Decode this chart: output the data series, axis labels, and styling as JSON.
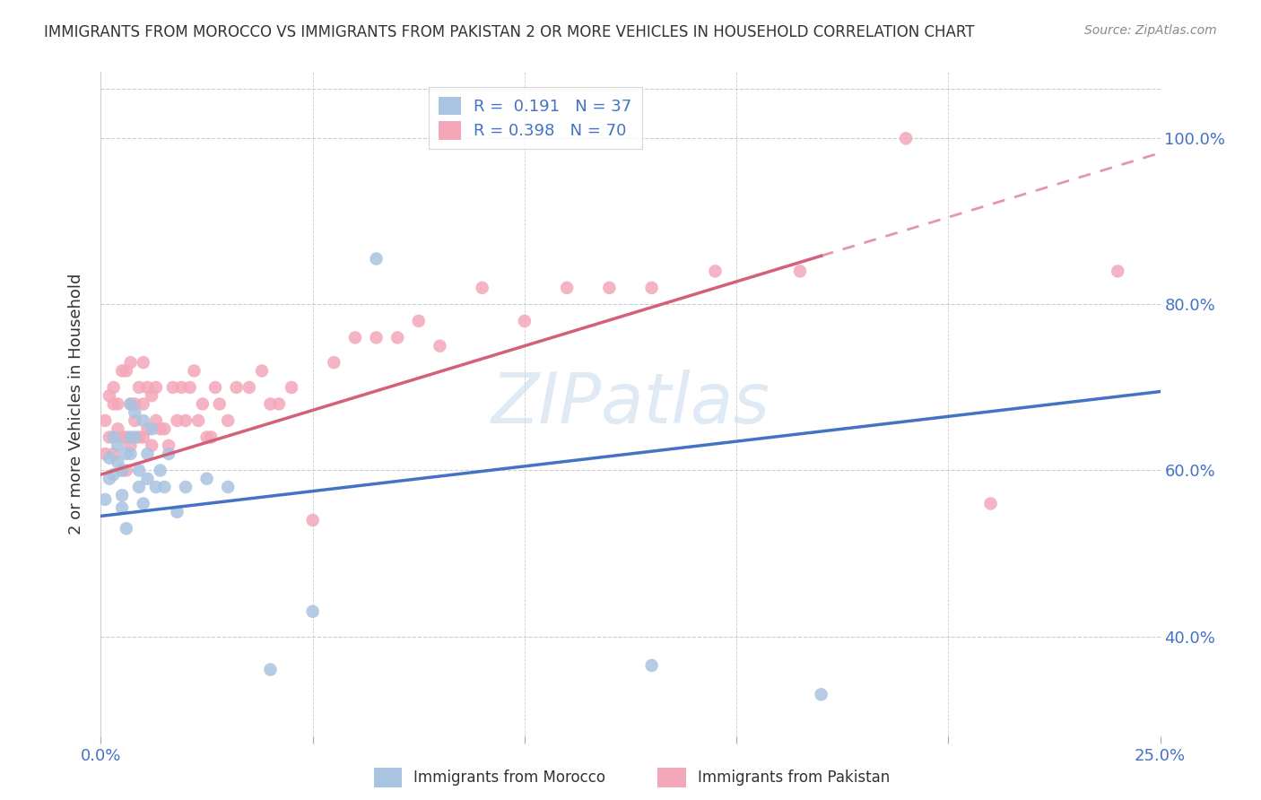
{
  "title": "IMMIGRANTS FROM MOROCCO VS IMMIGRANTS FROM PAKISTAN 2 OR MORE VEHICLES IN HOUSEHOLD CORRELATION CHART",
  "source": "Source: ZipAtlas.com",
  "ylabel": "2 or more Vehicles in Household",
  "morocco_color": "#a8c4e0",
  "pakistan_color": "#f4a7b9",
  "morocco_line_color": "#4472c4",
  "pakistan_line_color": "#d4607a",
  "watermark_color": "#ccdded",
  "background_color": "#ffffff",
  "grid_color": "#cccccc",
  "title_color": "#333333",
  "axis_label_color": "#4472c4",
  "morocco_R": 0.191,
  "pakistan_R": 0.398,
  "morocco_N": 37,
  "pakistan_N": 70,
  "xlim": [
    0.0,
    0.25
  ],
  "ylim": [
    0.28,
    1.08
  ],
  "yticks": [
    0.4,
    0.6,
    0.8,
    1.0
  ],
  "ytick_labels": [
    "40.0%",
    "60.0%",
    "80.0%",
    "100.0%"
  ],
  "xtick_positions": [
    0.0,
    0.05,
    0.1,
    0.15,
    0.2,
    0.25
  ],
  "xtick_labels": [
    "0.0%",
    "",
    "",
    "",
    "",
    "25.0%"
  ],
  "morocco_x": [
    0.001,
    0.002,
    0.002,
    0.003,
    0.003,
    0.004,
    0.004,
    0.005,
    0.005,
    0.005,
    0.006,
    0.006,
    0.007,
    0.007,
    0.007,
    0.008,
    0.008,
    0.009,
    0.009,
    0.01,
    0.01,
    0.011,
    0.011,
    0.012,
    0.013,
    0.014,
    0.015,
    0.016,
    0.018,
    0.02,
    0.025,
    0.03,
    0.04,
    0.05,
    0.065,
    0.13,
    0.17
  ],
  "morocco_y": [
    0.565,
    0.59,
    0.615,
    0.595,
    0.64,
    0.63,
    0.61,
    0.57,
    0.555,
    0.6,
    0.53,
    0.62,
    0.62,
    0.68,
    0.64,
    0.64,
    0.67,
    0.58,
    0.6,
    0.66,
    0.56,
    0.62,
    0.59,
    0.65,
    0.58,
    0.6,
    0.58,
    0.62,
    0.55,
    0.58,
    0.59,
    0.58,
    0.36,
    0.43,
    0.855,
    0.365,
    0.33
  ],
  "pakistan_x": [
    0.001,
    0.001,
    0.002,
    0.002,
    0.003,
    0.003,
    0.003,
    0.004,
    0.004,
    0.005,
    0.005,
    0.005,
    0.006,
    0.006,
    0.006,
    0.007,
    0.007,
    0.007,
    0.008,
    0.008,
    0.009,
    0.009,
    0.01,
    0.01,
    0.01,
    0.011,
    0.011,
    0.012,
    0.012,
    0.013,
    0.013,
    0.014,
    0.015,
    0.016,
    0.017,
    0.018,
    0.019,
    0.02,
    0.021,
    0.022,
    0.023,
    0.024,
    0.025,
    0.026,
    0.027,
    0.028,
    0.03,
    0.032,
    0.035,
    0.038,
    0.04,
    0.042,
    0.045,
    0.05,
    0.055,
    0.06,
    0.065,
    0.07,
    0.075,
    0.08,
    0.09,
    0.1,
    0.11,
    0.12,
    0.13,
    0.145,
    0.165,
    0.19,
    0.21,
    0.24
  ],
  "pakistan_y": [
    0.62,
    0.66,
    0.64,
    0.69,
    0.68,
    0.7,
    0.62,
    0.65,
    0.68,
    0.6,
    0.64,
    0.72,
    0.6,
    0.64,
    0.72,
    0.63,
    0.68,
    0.73,
    0.66,
    0.68,
    0.64,
    0.7,
    0.64,
    0.68,
    0.73,
    0.65,
    0.7,
    0.63,
    0.69,
    0.66,
    0.7,
    0.65,
    0.65,
    0.63,
    0.7,
    0.66,
    0.7,
    0.66,
    0.7,
    0.72,
    0.66,
    0.68,
    0.64,
    0.64,
    0.7,
    0.68,
    0.66,
    0.7,
    0.7,
    0.72,
    0.68,
    0.68,
    0.7,
    0.54,
    0.73,
    0.76,
    0.76,
    0.76,
    0.78,
    0.75,
    0.82,
    0.78,
    0.82,
    0.82,
    0.82,
    0.84,
    0.84,
    1.0,
    0.56,
    0.84
  ],
  "pakistan_line_end_solid": 0.17,
  "morocco_line_intercept": 0.545,
  "morocco_line_slope": 0.6,
  "pakistan_line_intercept": 0.595,
  "pakistan_line_slope": 1.55
}
